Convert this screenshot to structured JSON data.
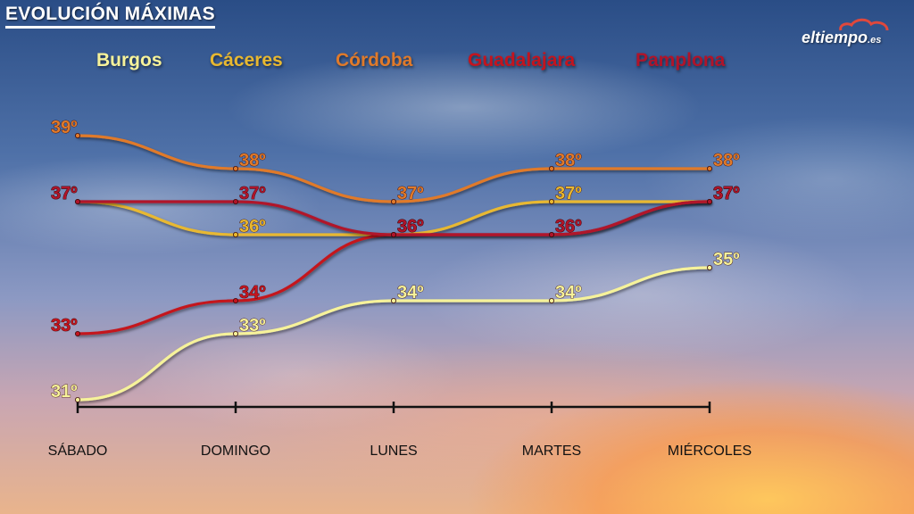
{
  "header": {
    "title": "EVOLUCIÓN MÁXIMAS",
    "logo_text": "eltiempo",
    "logo_suffix": ".es"
  },
  "chart_data": {
    "type": "line",
    "title": "EVOLUCIÓN MÁXIMAS",
    "categories": [
      "SÁBADO",
      "DOMINGO",
      "LUNES",
      "MARTES",
      "MIÉRCOLES"
    ],
    "unit": "º",
    "ylim": [
      31,
      39
    ],
    "grid": false,
    "legend_position": "top",
    "series": [
      {
        "name": "Burgos",
        "color": "#f6f29a",
        "values": [
          31,
          33,
          34,
          34,
          35
        ]
      },
      {
        "name": "Cáceres",
        "color": "#e8b830",
        "values": [
          37,
          36,
          36,
          37,
          37
        ]
      },
      {
        "name": "Córdoba",
        "color": "#e07a2a",
        "values": [
          39,
          38,
          37,
          38,
          38
        ]
      },
      {
        "name": "Guadalajara",
        "color": "#c4141e",
        "values": [
          33,
          34,
          36,
          36,
          37
        ]
      },
      {
        "name": "Pamplona",
        "color": "#b0142a",
        "values": [
          37,
          37,
          36,
          36,
          37
        ]
      }
    ]
  }
}
